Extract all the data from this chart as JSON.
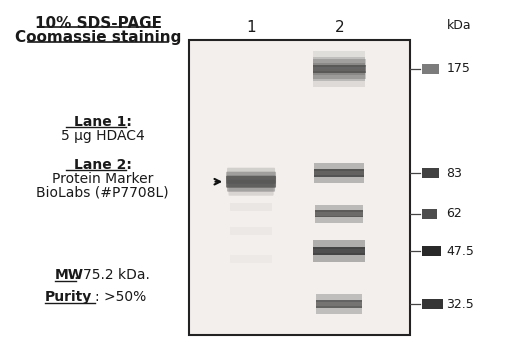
{
  "title_line1": "10% SDS-PAGE",
  "title_line2": "Coomassie staining",
  "lane1_label": "Lane 1",
  "lane1_desc": "5 μg HDAC4",
  "lane2_label": "Lane 2",
  "lane2_desc1": "Protein Marker",
  "lane2_desc2": "BioLabs (#P7708L)",
  "mw_label": "MW",
  "mw_value": ": 75.2 kDa.",
  "purity_label": "Purity",
  "purity_value": ": >50%",
  "kda_label": "kDa",
  "marker_sizes": [
    175,
    83,
    62,
    47.5,
    32.5
  ],
  "bg_color": "#ffffff",
  "gel_bg": "#f2efec",
  "text_color": "#1a1a1a"
}
